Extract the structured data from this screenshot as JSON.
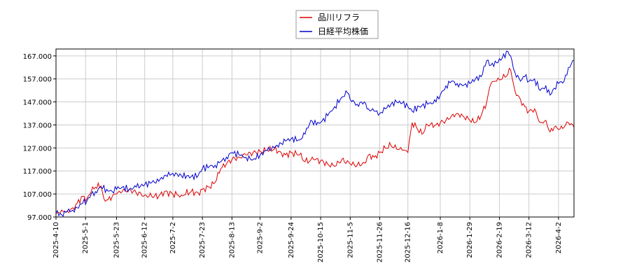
{
  "chart_data": {
    "type": "line",
    "title": "",
    "xlabel": "",
    "ylabel": "",
    "ylim": [
      97,
      170
    ],
    "xlim": [
      "2025-04-10",
      "2026-04-13"
    ],
    "grid": true,
    "legend_position": "top-center",
    "y_ticks": [
      "97.000",
      "107.000",
      "117.000",
      "127.000",
      "137.000",
      "147.000",
      "157.000",
      "167.000"
    ],
    "x_ticks": [
      "2025-4-10",
      "2025-5-1",
      "2025-5-23",
      "2025-6-12",
      "2025-7-2",
      "2025-7-23",
      "2025-8-13",
      "2025-9-2",
      "2025-9-24",
      "2025-10-15",
      "2025-11-5",
      "2025-11-26",
      "2025-12-16",
      "2026-1-8",
      "2026-1-29",
      "2026-2-19",
      "2026-3-12",
      "2026-4-2"
    ],
    "series": [
      {
        "name": "品川リフラ",
        "color": "#dd0000",
        "points": [
          [
            "2025-04-10",
            98.5
          ],
          [
            "2025-04-14",
            100
          ],
          [
            "2025-04-18",
            99.5
          ],
          [
            "2025-04-22",
            101
          ],
          [
            "2025-04-25",
            103
          ],
          [
            "2025-04-29",
            106
          ],
          [
            "2025-05-02",
            105
          ],
          [
            "2025-05-05",
            108
          ],
          [
            "2025-05-08",
            110
          ],
          [
            "2025-05-12",
            110.5
          ],
          [
            "2025-05-14",
            105
          ],
          [
            "2025-05-17",
            104.5
          ],
          [
            "2025-05-20",
            106
          ],
          [
            "2025-05-23",
            107
          ],
          [
            "2025-05-27",
            108
          ],
          [
            "2025-06-01",
            109
          ],
          [
            "2025-06-06",
            107.5
          ],
          [
            "2025-06-12",
            106.5
          ],
          [
            "2025-06-17",
            106
          ],
          [
            "2025-06-22",
            106
          ],
          [
            "2025-06-26",
            108
          ],
          [
            "2025-07-02",
            107
          ],
          [
            "2025-07-08",
            106.5
          ],
          [
            "2025-07-15",
            108
          ],
          [
            "2025-07-20",
            107.5
          ],
          [
            "2025-07-23",
            109
          ],
          [
            "2025-07-28",
            110
          ],
          [
            "2025-08-01",
            112
          ],
          [
            "2025-08-05",
            118
          ],
          [
            "2025-08-09",
            120
          ],
          [
            "2025-08-13",
            122
          ],
          [
            "2025-08-18",
            123
          ],
          [
            "2025-08-23",
            124
          ],
          [
            "2025-08-28",
            125
          ],
          [
            "2025-09-02",
            125.5
          ],
          [
            "2025-09-07",
            126
          ],
          [
            "2025-09-12",
            126.5
          ],
          [
            "2025-09-17",
            125
          ],
          [
            "2025-09-20",
            124
          ],
          [
            "2025-09-24",
            125
          ],
          [
            "2025-09-30",
            124
          ],
          [
            "2025-10-04",
            121
          ],
          [
            "2025-10-10",
            122
          ],
          [
            "2025-10-15",
            121.5
          ],
          [
            "2025-10-20",
            120
          ],
          [
            "2025-10-25",
            119
          ],
          [
            "2025-10-30",
            122
          ],
          [
            "2025-11-05",
            120
          ],
          [
            "2025-11-10",
            119.5
          ],
          [
            "2025-11-15",
            120.5
          ],
          [
            "2025-11-18",
            124
          ],
          [
            "2025-11-22",
            123
          ],
          [
            "2025-11-26",
            125
          ],
          [
            "2025-11-30",
            127
          ],
          [
            "2025-12-04",
            128
          ],
          [
            "2025-12-08",
            126.5
          ],
          [
            "2025-12-12",
            126
          ],
          [
            "2025-12-16",
            125
          ],
          [
            "2025-12-19",
            138
          ],
          [
            "2025-12-22",
            136
          ],
          [
            "2025-12-26",
            133
          ],
          [
            "2025-12-30",
            137
          ],
          [
            "2026-01-05",
            137
          ],
          [
            "2026-01-08",
            138
          ],
          [
            "2026-01-12",
            139
          ],
          [
            "2026-01-16",
            141
          ],
          [
            "2026-01-20",
            142
          ],
          [
            "2026-01-24",
            141
          ],
          [
            "2026-01-29",
            139
          ],
          [
            "2026-02-02",
            138
          ],
          [
            "2026-02-06",
            141
          ],
          [
            "2026-02-10",
            147
          ],
          [
            "2026-02-13",
            155
          ],
          [
            "2026-02-17",
            156
          ],
          [
            "2026-02-21",
            157
          ],
          [
            "2026-02-25",
            159
          ],
          [
            "2026-02-27",
            161
          ],
          [
            "2026-03-02",
            152
          ],
          [
            "2026-03-06",
            148
          ],
          [
            "2026-03-09",
            145
          ],
          [
            "2026-03-12",
            143
          ],
          [
            "2026-03-16",
            144
          ],
          [
            "2026-03-20",
            138
          ],
          [
            "2026-03-24",
            139
          ],
          [
            "2026-03-27",
            134
          ],
          [
            "2026-03-30",
            136
          ],
          [
            "2026-04-02",
            135
          ],
          [
            "2026-04-06",
            136
          ],
          [
            "2026-04-09",
            138
          ],
          [
            "2026-04-13",
            136
          ]
        ]
      },
      {
        "name": "日経平均株価",
        "color": "#0000cc",
        "points": [
          [
            "2025-04-10",
            99
          ],
          [
            "2025-04-14",
            98
          ],
          [
            "2025-04-18",
            99.5
          ],
          [
            "2025-04-22",
            100
          ],
          [
            "2025-04-25",
            101
          ],
          [
            "2025-04-29",
            103
          ],
          [
            "2025-05-02",
            104
          ],
          [
            "2025-05-05",
            107
          ],
          [
            "2025-05-08",
            108
          ],
          [
            "2025-05-12",
            110
          ],
          [
            "2025-05-16",
            109
          ],
          [
            "2025-05-20",
            108
          ],
          [
            "2025-05-23",
            109
          ],
          [
            "2025-05-27",
            110
          ],
          [
            "2025-06-01",
            109
          ],
          [
            "2025-06-06",
            110
          ],
          [
            "2025-06-12",
            111
          ],
          [
            "2025-06-17",
            112
          ],
          [
            "2025-06-22",
            112.5
          ],
          [
            "2025-06-26",
            115
          ],
          [
            "2025-07-02",
            116
          ],
          [
            "2025-07-08",
            115
          ],
          [
            "2025-07-15",
            114.5
          ],
          [
            "2025-07-20",
            115
          ],
          [
            "2025-07-23",
            118
          ],
          [
            "2025-07-28",
            119
          ],
          [
            "2025-08-01",
            119.5
          ],
          [
            "2025-08-05",
            121
          ],
          [
            "2025-08-09",
            123
          ],
          [
            "2025-08-13",
            125
          ],
          [
            "2025-08-18",
            124
          ],
          [
            "2025-08-23",
            123
          ],
          [
            "2025-08-28",
            122
          ],
          [
            "2025-09-02",
            124
          ],
          [
            "2025-09-07",
            126
          ],
          [
            "2025-09-12",
            127
          ],
          [
            "2025-09-17",
            129
          ],
          [
            "2025-09-20",
            130
          ],
          [
            "2025-09-24",
            131
          ],
          [
            "2025-09-30",
            130.5
          ],
          [
            "2025-10-04",
            133
          ],
          [
            "2025-10-08",
            139
          ],
          [
            "2025-10-12",
            137
          ],
          [
            "2025-10-15",
            138
          ],
          [
            "2025-10-20",
            141
          ],
          [
            "2025-10-25",
            145
          ],
          [
            "2025-10-30",
            149
          ],
          [
            "2025-11-03",
            151
          ],
          [
            "2025-11-05",
            148
          ],
          [
            "2025-11-10",
            146
          ],
          [
            "2025-11-15",
            147
          ],
          [
            "2025-11-18",
            144
          ],
          [
            "2025-11-22",
            143
          ],
          [
            "2025-11-26",
            142
          ],
          [
            "2025-11-30",
            144
          ],
          [
            "2025-12-04",
            146
          ],
          [
            "2025-12-08",
            147
          ],
          [
            "2025-12-12",
            146.5
          ],
          [
            "2025-12-16",
            145
          ],
          [
            "2025-12-19",
            143
          ],
          [
            "2025-12-24",
            145
          ],
          [
            "2025-12-30",
            146
          ],
          [
            "2026-01-05",
            147
          ],
          [
            "2026-01-08",
            150
          ],
          [
            "2026-01-12",
            154
          ],
          [
            "2026-01-16",
            156
          ],
          [
            "2026-01-20",
            155
          ],
          [
            "2026-01-24",
            154
          ],
          [
            "2026-01-29",
            155
          ],
          [
            "2026-02-02",
            157
          ],
          [
            "2026-02-06",
            158
          ],
          [
            "2026-02-10",
            165
          ],
          [
            "2026-02-13",
            163
          ],
          [
            "2026-02-17",
            164
          ],
          [
            "2026-02-21",
            166
          ],
          [
            "2026-02-25",
            169
          ],
          [
            "2026-02-27",
            167
          ],
          [
            "2026-03-02",
            160
          ],
          [
            "2026-03-06",
            156
          ],
          [
            "2026-03-09",
            158
          ],
          [
            "2026-03-12",
            156
          ],
          [
            "2026-03-16",
            157
          ],
          [
            "2026-03-20",
            152
          ],
          [
            "2026-03-24",
            154
          ],
          [
            "2026-03-27",
            150
          ],
          [
            "2026-03-30",
            153
          ],
          [
            "2026-04-02",
            155
          ],
          [
            "2026-04-06",
            156
          ],
          [
            "2026-04-09",
            162
          ],
          [
            "2026-04-13",
            165
          ]
        ]
      }
    ]
  }
}
